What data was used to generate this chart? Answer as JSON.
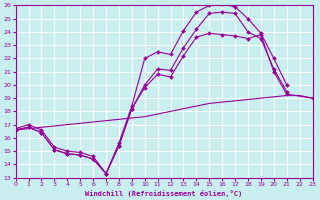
{
  "bg_color": "#c8eef0",
  "line_color": "#990099",
  "grid_color": "#ffffff",
  "xlabel": "Windchill (Refroidissement éolien,°C)",
  "xlim": [
    0,
    23
  ],
  "ylim": [
    13,
    26
  ],
  "curve1_x": [
    0,
    1,
    2,
    3,
    4,
    5,
    6,
    7,
    8,
    9,
    10,
    11,
    12,
    13,
    14,
    15,
    16,
    17,
    18,
    19,
    20,
    21
  ],
  "curve1_y": [
    16.7,
    17.0,
    16.6,
    15.3,
    15.0,
    14.9,
    14.6,
    13.3,
    15.6,
    18.4,
    22.0,
    22.5,
    22.3,
    24.1,
    25.5,
    26.0,
    26.1,
    25.9,
    25.0,
    23.9,
    22.0,
    20.0
  ],
  "curve2_x": [
    0,
    1,
    2,
    3,
    4,
    5,
    6,
    7,
    8,
    9,
    10,
    11,
    12,
    13,
    14,
    15,
    16,
    17,
    18,
    19,
    20,
    21
  ],
  "curve2_y": [
    16.6,
    16.8,
    16.4,
    15.1,
    14.8,
    14.7,
    14.4,
    13.3,
    15.4,
    18.2,
    20.0,
    21.2,
    21.1,
    22.8,
    24.2,
    25.4,
    25.5,
    25.4,
    24.0,
    23.5,
    21.2,
    19.5
  ],
  "curve3_x": [
    0,
    1,
    2,
    3,
    4,
    5,
    6,
    7,
    8,
    9,
    10,
    11,
    12,
    13,
    14,
    15,
    16,
    17,
    18,
    19,
    20,
    21,
    22,
    23
  ],
  "curve3_y": [
    16.6,
    16.7,
    16.8,
    16.9,
    17.0,
    17.1,
    17.2,
    17.3,
    17.4,
    17.5,
    17.6,
    17.8,
    18.0,
    18.2,
    18.4,
    18.6,
    18.7,
    18.8,
    18.9,
    19.0,
    19.1,
    19.2,
    19.2,
    19.0
  ],
  "curve4_x": [
    0,
    1,
    2,
    3,
    4,
    5,
    6,
    7,
    8,
    9,
    10,
    11,
    12,
    13,
    14,
    15,
    16,
    17,
    18,
    19,
    20,
    21,
    22,
    23
  ],
  "curve4_y": [
    16.6,
    16.8,
    16.4,
    15.1,
    14.8,
    14.7,
    14.4,
    13.3,
    15.4,
    18.2,
    19.8,
    20.8,
    20.6,
    22.2,
    23.6,
    23.9,
    23.8,
    23.7,
    23.5,
    23.8,
    21.0,
    19.3,
    null,
    19.0
  ]
}
